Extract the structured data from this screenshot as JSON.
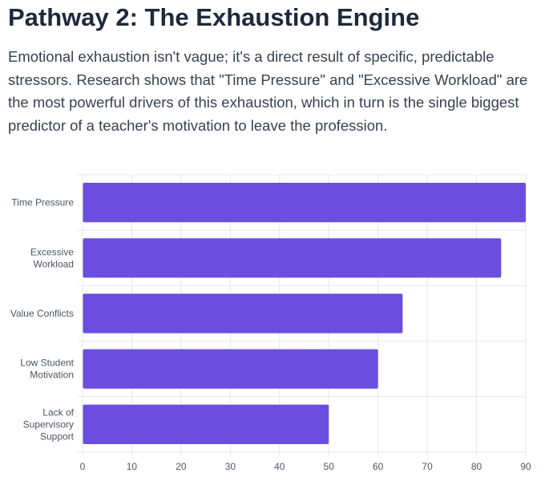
{
  "header": {
    "title": "Pathway 2: The Exhaustion Engine",
    "description": "Emotional exhaustion isn't vague; it's a direct result of specific, predictable stressors. Research shows that \"Time Pressure\" and \"Excessive Workload\" are the most powerful drivers of this exhaustion, which in turn is the single biggest predictor of a teacher's motivation to leave the profession."
  },
  "colors": {
    "bar": "#6b4de0",
    "grid": "#e5e7eb",
    "tick_text": "#4b5563"
  },
  "chart_data": {
    "type": "bar",
    "orientation": "horizontal",
    "categories": [
      [
        "Time Pressure"
      ],
      [
        "Excessive",
        "Workload"
      ],
      [
        "Value Conflicts"
      ],
      [
        "Low Student",
        "Motivation"
      ],
      [
        "Lack of",
        "Supervisory",
        "Support"
      ]
    ],
    "values": [
      90,
      85,
      65,
      60,
      50
    ],
    "xlim": [
      0,
      90
    ],
    "x_ticks": [
      0,
      10,
      20,
      30,
      40,
      50,
      60,
      70,
      80,
      90
    ],
    "title": "",
    "xlabel": "",
    "ylabel": "",
    "grid": true,
    "legend": "none"
  }
}
